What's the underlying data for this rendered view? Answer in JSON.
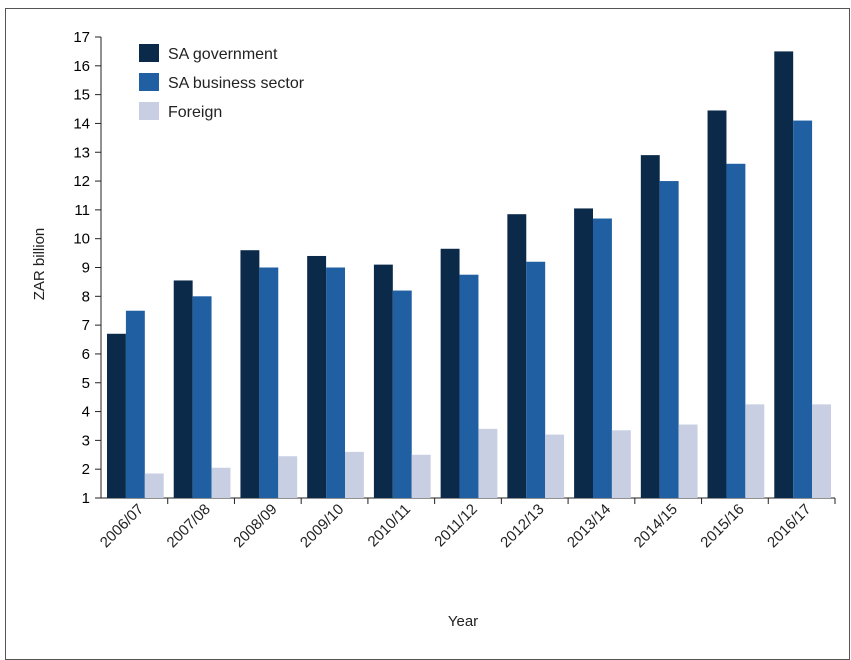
{
  "chart_data": {
    "type": "bar",
    "title": "",
    "xlabel": "Year",
    "ylabel": "ZAR billion",
    "ylim": [
      1,
      17
    ],
    "yticks": [
      1,
      2,
      3,
      4,
      5,
      6,
      7,
      8,
      9,
      10,
      11,
      12,
      13,
      14,
      15,
      16,
      17
    ],
    "grid": false,
    "legend_position": "top-left",
    "categories": [
      "2006/07",
      "2007/08",
      "2008/09",
      "2009/10",
      "2010/11",
      "2011/12",
      "2012/13",
      "2013/14",
      "2014/15",
      "2015/16",
      "2016/17"
    ],
    "series": [
      {
        "name": "SA government",
        "color": "#0b2a4a",
        "values": [
          6.7,
          8.55,
          9.6,
          9.4,
          9.1,
          9.65,
          10.85,
          11.05,
          12.9,
          14.45,
          16.5
        ]
      },
      {
        "name": "SA business sector",
        "color": "#1f5fa2",
        "values": [
          7.5,
          8.0,
          9.0,
          9.0,
          8.2,
          8.75,
          9.2,
          10.7,
          12.0,
          12.6,
          14.1
        ]
      },
      {
        "name": "Foreign",
        "color": "#c9cfe3",
        "values": [
          1.85,
          2.05,
          2.45,
          2.6,
          2.5,
          3.4,
          3.2,
          3.35,
          3.55,
          4.25,
          4.25
        ]
      }
    ]
  }
}
